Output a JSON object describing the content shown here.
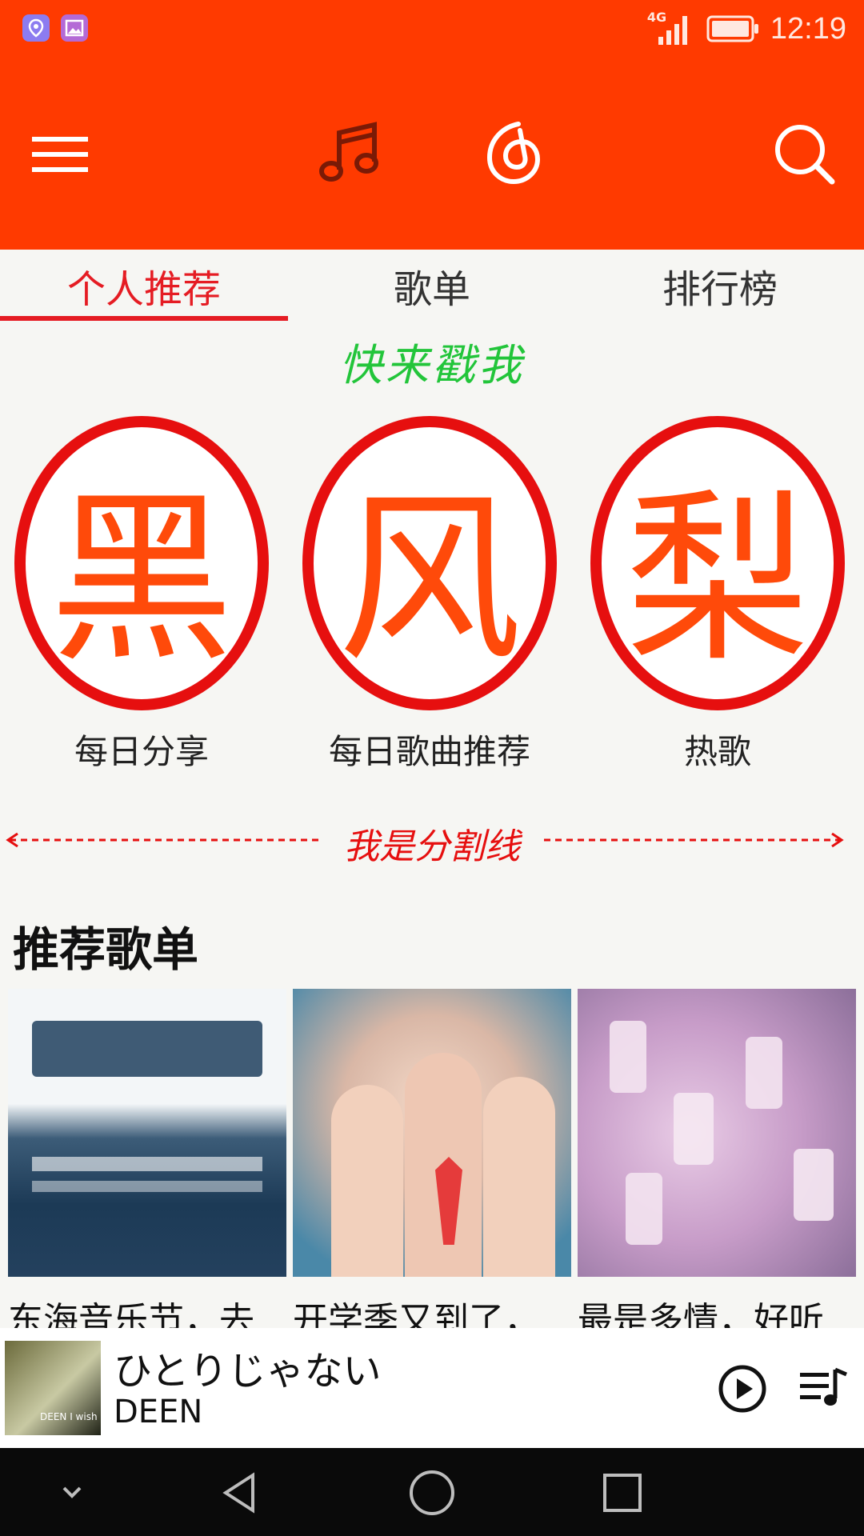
{
  "status": {
    "network": "4G",
    "time": "12:19"
  },
  "toolbar": {
    "menu_icon": "menu-icon",
    "music_icon": "music-note-icon",
    "discover_icon": "netease-logo-icon",
    "search_icon": "search-icon"
  },
  "tabs": [
    {
      "label": "个人推荐",
      "active": true
    },
    {
      "label": "歌单",
      "active": false
    },
    {
      "label": "排行榜",
      "active": false
    }
  ],
  "promo": {
    "title": "快来戳我",
    "items": [
      {
        "glyph": "黑",
        "label": "每日分享"
      },
      {
        "glyph": "风",
        "label": "每日歌曲推荐"
      },
      {
        "glyph": "梨",
        "label": "热歌"
      }
    ]
  },
  "divider": {
    "text": "我是分割线"
  },
  "recommended": {
    "title": "推荐歌单",
    "items": [
      {
        "title": "东海音乐节，去"
      },
      {
        "title": "开学季又到了，"
      },
      {
        "title": "最是多情，好听"
      }
    ]
  },
  "player": {
    "song": "ひとりじゃない",
    "artist": "DEEN",
    "album_thumb_text": "DEEN I wish"
  },
  "colors": {
    "brand": "#FF3A00",
    "accent": "#E51C23",
    "promo_text": "#22C53A"
  }
}
